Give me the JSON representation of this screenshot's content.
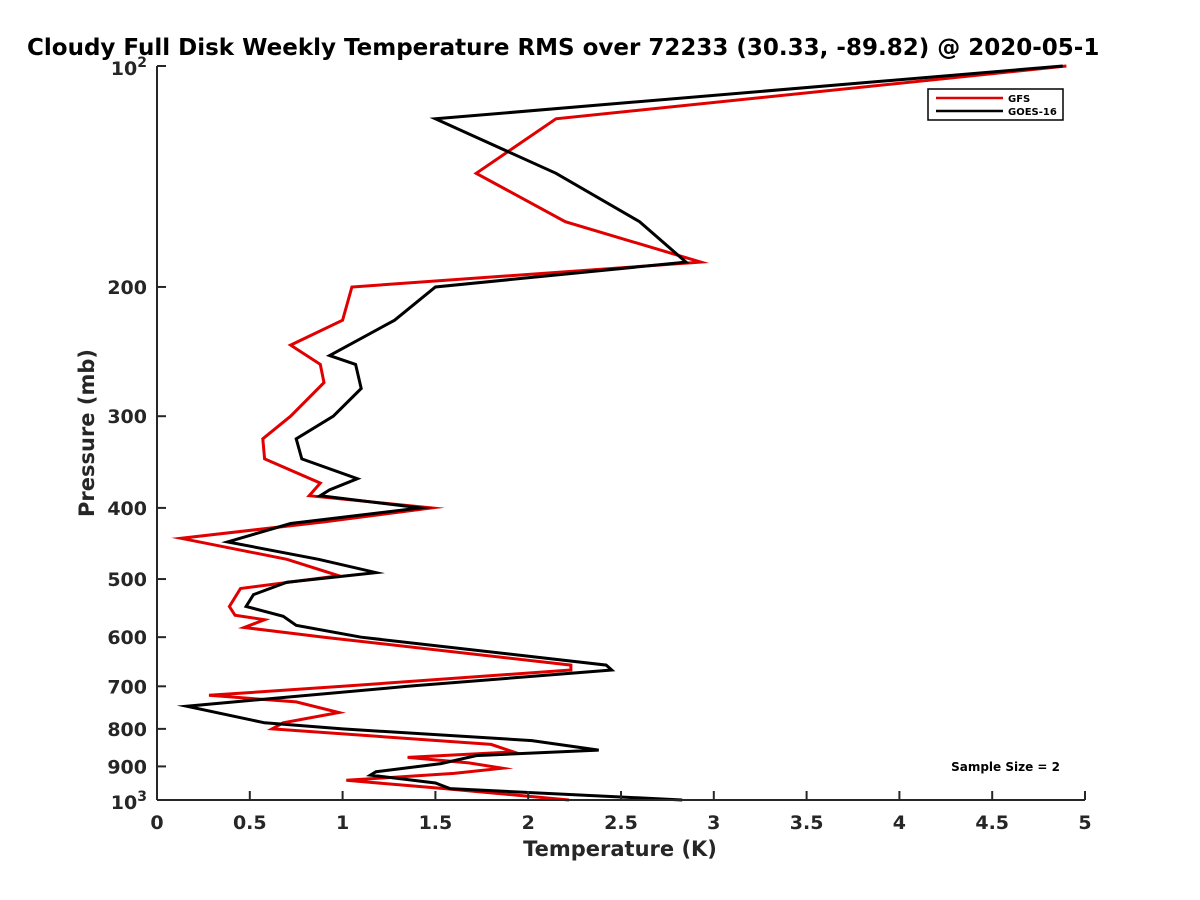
{
  "chart_data": {
    "type": "line",
    "title": "Cloudy Full Disk Weekly Temperature RMS over 72233 (30.33, -89.82) @ 2020-05-1",
    "xlabel": "Temperature (K)",
    "ylabel": "Pressure (mb)",
    "xlim": [
      0,
      5
    ],
    "ylim": [
      100,
      1000
    ],
    "y_scale": "log",
    "y_reversed": true,
    "grid": false,
    "legend_position": "top-right",
    "x_ticks": [
      "0",
      "0.5",
      "1",
      "1.5",
      "2",
      "2.5",
      "3",
      "3.5",
      "4",
      "4.5",
      "5"
    ],
    "y_ticks": [
      {
        "value": 200,
        "label": "200"
      },
      {
        "value": 300,
        "label": "300"
      },
      {
        "value": 400,
        "label": "400"
      },
      {
        "value": 500,
        "label": "500"
      },
      {
        "value": 600,
        "label": "600"
      },
      {
        "value": 700,
        "label": "700"
      },
      {
        "value": 800,
        "label": "800"
      },
      {
        "value": 900,
        "label": "900"
      }
    ],
    "y_ticks_power": [
      {
        "value": 100,
        "base": "10",
        "exp": "2"
      },
      {
        "value": 1000,
        "base": "10",
        "exp": "3"
      }
    ],
    "annotation": "Sample Size = 2",
    "series": [
      {
        "name": "GFS",
        "color": "#e00000",
        "points": [
          [
            4.9,
            100
          ],
          [
            2.15,
            118
          ],
          [
            1.72,
            140
          ],
          [
            2.2,
            163
          ],
          [
            2.93,
            185
          ],
          [
            1.05,
            200
          ],
          [
            1.0,
            222
          ],
          [
            0.72,
            240
          ],
          [
            0.88,
            255
          ],
          [
            0.9,
            270
          ],
          [
            0.72,
            300
          ],
          [
            0.57,
            322
          ],
          [
            0.58,
            343
          ],
          [
            0.88,
            370
          ],
          [
            0.82,
            385
          ],
          [
            1.48,
            400
          ],
          [
            0.9,
            418
          ],
          [
            0.13,
            440
          ],
          [
            0.7,
            470
          ],
          [
            0.98,
            495
          ],
          [
            0.45,
            515
          ],
          [
            0.39,
            545
          ],
          [
            0.42,
            560
          ],
          [
            0.58,
            568
          ],
          [
            0.47,
            582
          ],
          [
            0.9,
            600
          ],
          [
            2.23,
            655
          ],
          [
            2.23,
            665
          ],
          [
            1.0,
            700
          ],
          [
            0.28,
            720
          ],
          [
            0.75,
            735
          ],
          [
            0.98,
            760
          ],
          [
            0.68,
            785
          ],
          [
            0.62,
            800
          ],
          [
            1.8,
            840
          ],
          [
            1.92,
            860
          ],
          [
            1.35,
            875
          ],
          [
            1.68,
            890
          ],
          [
            1.86,
            905
          ],
          [
            1.6,
            920
          ],
          [
            1.02,
            940
          ],
          [
            1.55,
            965
          ],
          [
            2.22,
            1000
          ]
        ]
      },
      {
        "name": "GOES-16",
        "color": "#000000",
        "points": [
          [
            4.88,
            100
          ],
          [
            1.5,
            118
          ],
          [
            2.15,
            140
          ],
          [
            2.6,
            163
          ],
          [
            2.85,
            185
          ],
          [
            1.5,
            200
          ],
          [
            1.28,
            222
          ],
          [
            0.93,
            248
          ],
          [
            1.07,
            255
          ],
          [
            1.1,
            275
          ],
          [
            0.95,
            300
          ],
          [
            0.75,
            322
          ],
          [
            0.78,
            343
          ],
          [
            1.08,
            365
          ],
          [
            0.93,
            378
          ],
          [
            0.88,
            385
          ],
          [
            1.42,
            400
          ],
          [
            0.72,
            420
          ],
          [
            0.38,
            445
          ],
          [
            0.87,
            470
          ],
          [
            1.18,
            490
          ],
          [
            0.7,
            505
          ],
          [
            0.52,
            525
          ],
          [
            0.48,
            545
          ],
          [
            0.68,
            562
          ],
          [
            0.75,
            578
          ],
          [
            1.1,
            600
          ],
          [
            2.42,
            655
          ],
          [
            2.45,
            665
          ],
          [
            1.35,
            700
          ],
          [
            0.16,
            745
          ],
          [
            0.58,
            785
          ],
          [
            1.0,
            800
          ],
          [
            2.02,
            830
          ],
          [
            2.38,
            855
          ],
          [
            1.72,
            870
          ],
          [
            1.53,
            892
          ],
          [
            1.18,
            915
          ],
          [
            1.15,
            925
          ],
          [
            1.5,
            948
          ],
          [
            1.58,
            965
          ],
          [
            2.83,
            1000
          ]
        ]
      }
    ]
  }
}
